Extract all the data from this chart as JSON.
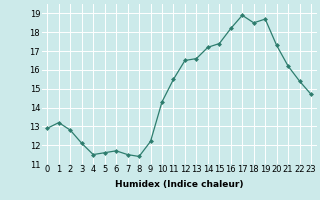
{
  "xlabel": "Humidex (Indice chaleur)",
  "ylabel": "",
  "x": [
    0,
    1,
    2,
    3,
    4,
    5,
    6,
    7,
    8,
    9,
    10,
    11,
    12,
    13,
    14,
    15,
    16,
    17,
    18,
    19,
    20,
    21,
    22,
    23
  ],
  "y": [
    12.9,
    13.2,
    12.8,
    12.1,
    11.5,
    11.6,
    11.7,
    11.5,
    11.4,
    12.2,
    14.3,
    15.5,
    16.5,
    16.6,
    17.2,
    17.4,
    18.2,
    18.9,
    18.5,
    18.7,
    17.3,
    16.2,
    15.4,
    14.7
  ],
  "ylim": [
    11,
    19.5
  ],
  "yticks": [
    11,
    12,
    13,
    14,
    15,
    16,
    17,
    18,
    19
  ],
  "xtick_labels": [
    "0",
    "1",
    "2",
    "3",
    "4",
    "5",
    "6",
    "7",
    "8",
    "9",
    "10",
    "11",
    "12",
    "13",
    "14",
    "15",
    "16",
    "17",
    "18",
    "19",
    "20",
    "21",
    "22",
    "23"
  ],
  "line_color": "#2e7d6e",
  "marker": "D",
  "marker_size": 2.0,
  "bg_color": "#cceaea",
  "grid_color": "#ffffff",
  "label_fontsize": 6.5,
  "tick_fontsize": 6.0
}
